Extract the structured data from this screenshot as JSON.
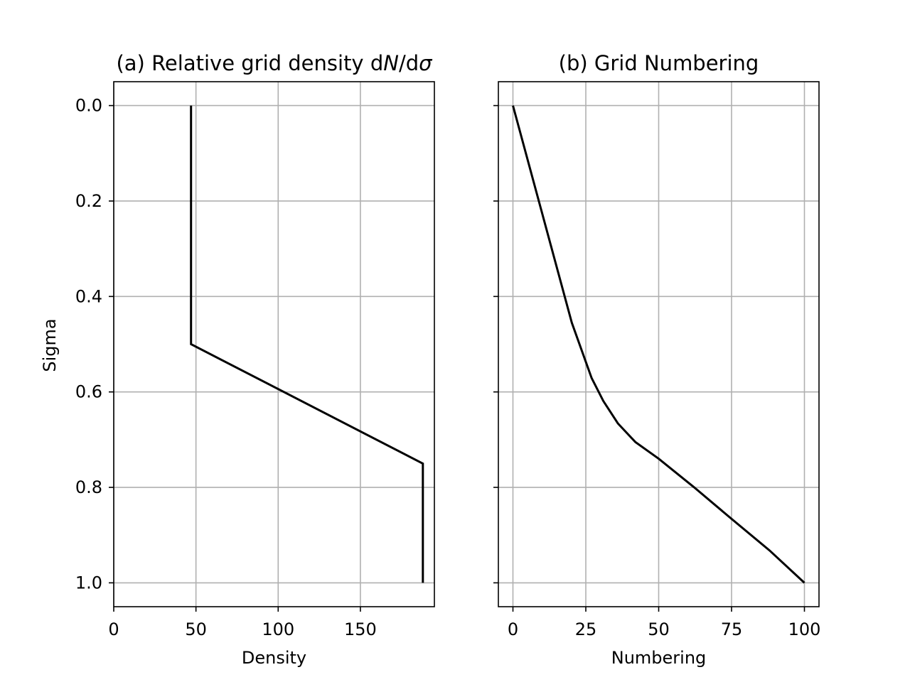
{
  "chart_data": [
    {
      "type": "line",
      "title": "(a) Relative grid density dN/dσ",
      "title_parts": {
        "prefix": "(a) Relative grid density d",
        "italic_n": "N",
        "slash_d": "/d",
        "italic_sigma": "σ"
      },
      "xlabel": "Density",
      "ylabel": "Sigma",
      "xlim": [
        0,
        195
      ],
      "ylim": [
        1.05,
        -0.05
      ],
      "y_inverted": true,
      "grid": true,
      "xticks": [
        0,
        50,
        100,
        150
      ],
      "xtick_labels": [
        "0",
        "50",
        "100",
        "150"
      ],
      "yticks": [
        0.0,
        0.2,
        0.4,
        0.6,
        0.8,
        1.0
      ],
      "ytick_labels": [
        "0.0",
        "0.2",
        "0.4",
        "0.6",
        "0.8",
        "1.0"
      ],
      "series": [
        {
          "color": "#000000",
          "x": [
            47,
            47,
            188,
            188
          ],
          "y": [
            0.0,
            0.5,
            0.75,
            1.0
          ]
        }
      ]
    },
    {
      "type": "line",
      "title": "(b) Grid Numbering",
      "xlabel": "Numbering",
      "ylabel": "",
      "xlim": [
        -5,
        105
      ],
      "ylim": [
        1.05,
        -0.05
      ],
      "y_inverted": true,
      "shared_y_with_panel_a": true,
      "grid": true,
      "xticks": [
        0,
        25,
        50,
        75,
        100
      ],
      "xtick_labels": [
        "0",
        "25",
        "50",
        "75",
        "100"
      ],
      "yticks": [
        0.0,
        0.2,
        0.4,
        0.6,
        0.8,
        1.0
      ],
      "ytick_labels": [],
      "series": [
        {
          "color": "#000000",
          "x": [
            0,
            20.2,
            24,
            27,
            31,
            36,
            42,
            50,
            62,
            75,
            88,
            100
          ],
          "y": [
            0.0,
            0.455,
            0.52,
            0.571,
            0.619,
            0.666,
            0.705,
            0.74,
            0.799,
            0.866,
            0.932,
            1.0
          ]
        }
      ]
    }
  ]
}
